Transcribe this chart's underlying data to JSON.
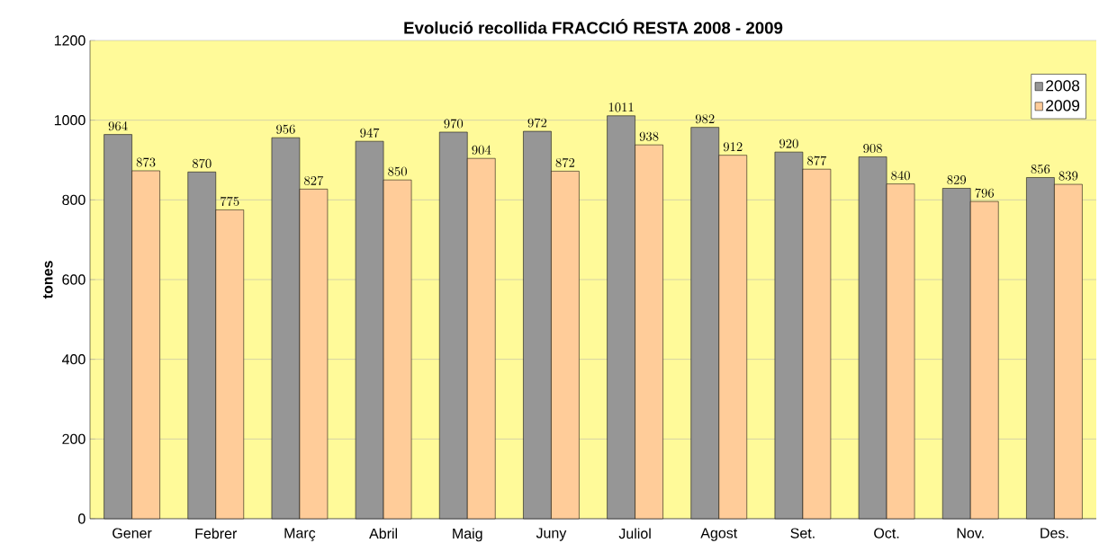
{
  "chart_data": {
    "type": "bar",
    "title": "Evolució recollida FRACCIÓ RESTA 2008 - 2009",
    "ylabel": "tones",
    "categories": [
      "Gener",
      "Febrer",
      "Març",
      "Abril",
      "Maig",
      "Juny",
      "Juliol",
      "Agost",
      "Set.",
      "Oct.",
      "Nov.",
      "Des."
    ],
    "series": [
      {
        "name": "2008",
        "color": "#969696",
        "values": [
          964,
          870,
          956,
          947,
          970,
          972,
          1011,
          982,
          920,
          908,
          829,
          856
        ]
      },
      {
        "name": "2009",
        "color": "#ffcc99",
        "values": [
          873,
          775,
          827,
          850,
          904,
          872,
          938,
          912,
          877,
          840,
          796,
          839
        ]
      }
    ],
    "ylim": [
      0,
      1200
    ],
    "yticks": [
      0,
      200,
      400,
      600,
      800,
      1000,
      1200
    ],
    "grid": "y",
    "legend": "top right",
    "data_labels": true
  }
}
